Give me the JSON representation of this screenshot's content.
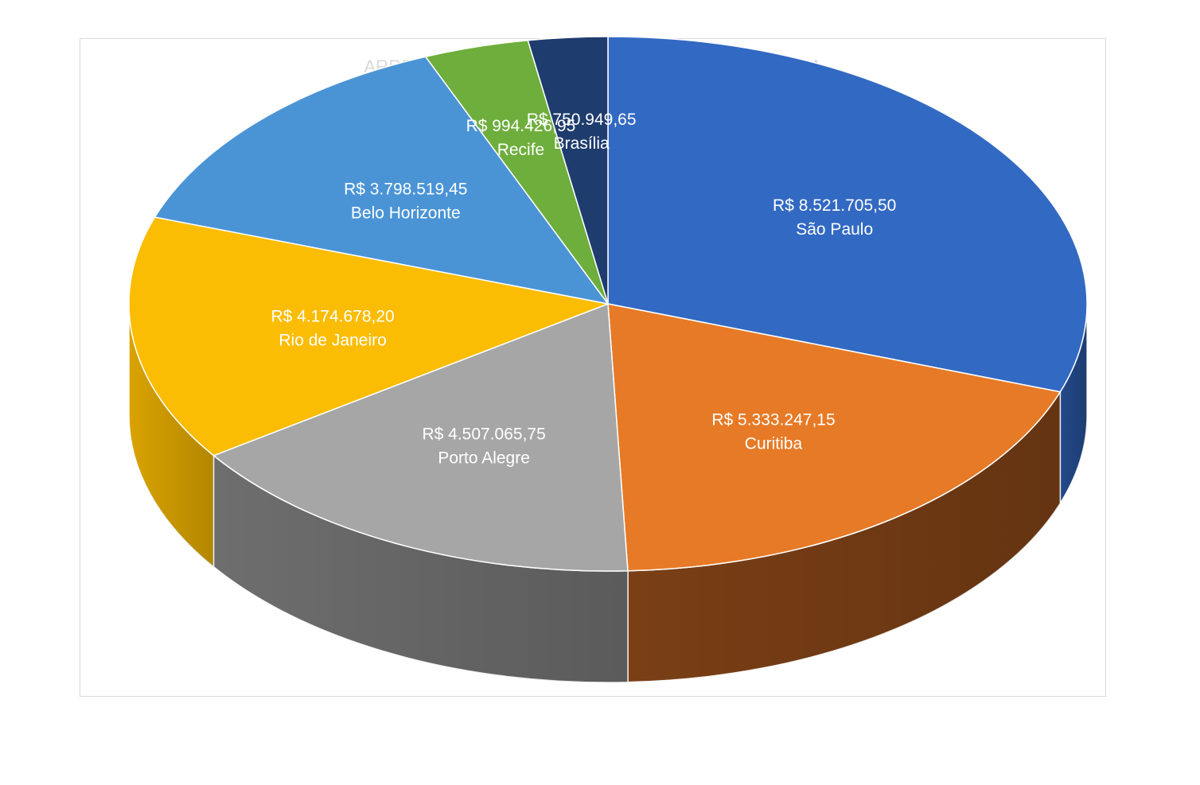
{
  "chart_data": {
    "type": "pie",
    "title": "ARRECADACAO DOS CONSULADOS COM CIDADANIA",
    "slices": [
      {
        "name": "São Paulo",
        "value_label": "R$ 8.521.705,50",
        "value": 8521705.5,
        "color": "#3269c2",
        "side_color": "#23498a"
      },
      {
        "name": "Curitiba",
        "value_label": "R$ 5.333.247,15",
        "value": 5333247.15,
        "color": "#e77a26",
        "side_color": "#7a3f15"
      },
      {
        "name": "Porto Alegre",
        "value_label": "R$ 4.507.065,75",
        "value": 4507065.75,
        "color": "#a6a6a6",
        "side_color": "#6e6e6e"
      },
      {
        "name": "Rio de Janeiro",
        "value_label": "R$ 4.174.678,20",
        "value": 4174678.2,
        "color": "#fbbc04",
        "side_color": "#d9a300"
      },
      {
        "name": "Belo Horizonte",
        "value_label": "R$ 3.798.519,45",
        "value": 3798519.45,
        "color": "#4a94d6",
        "side_color": "#2f6ea6"
      },
      {
        "name": "Recife",
        "value_label": "R$ 994.426,95",
        "value": 994426.95,
        "color": "#6eae3c",
        "side_color": "#4b7a28"
      },
      {
        "name": "Brasília",
        "value_label": "R$ 750.949,65",
        "value": 750949.65,
        "color": "#1f3c6e",
        "side_color": "#15294c"
      }
    ]
  }
}
